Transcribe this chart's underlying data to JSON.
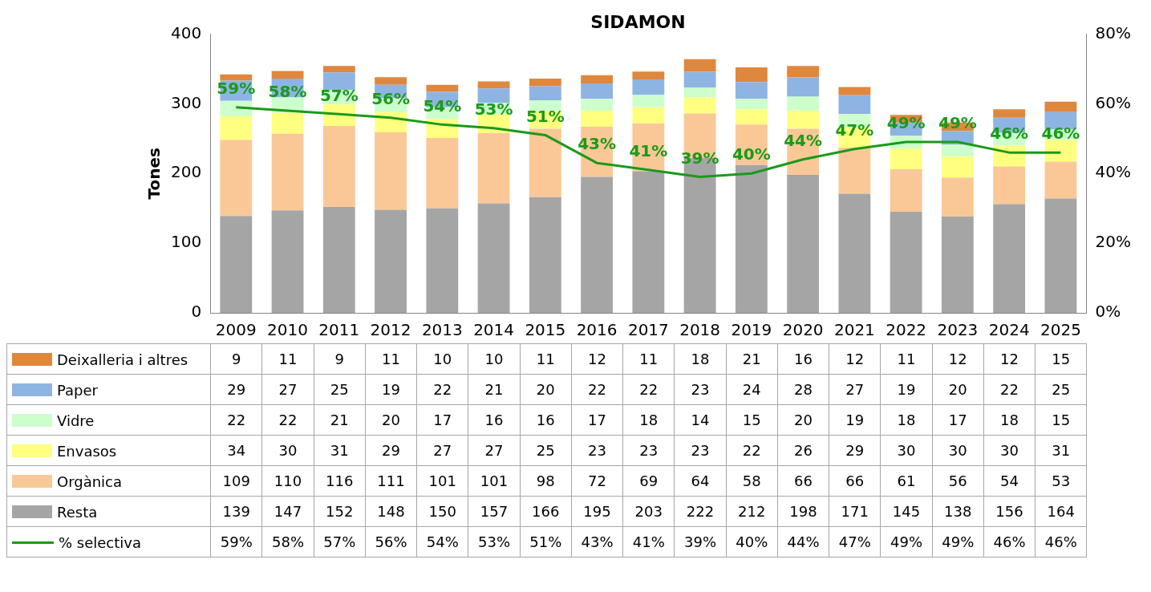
{
  "chart_data": {
    "type": "bar",
    "title": "SIDAMON",
    "ylabel": "Tones",
    "stacked": true,
    "grid": false,
    "legend": "bottom",
    "data_labels": true,
    "marker": "none",
    "categories": [
      "2009",
      "2010",
      "2011",
      "2012",
      "2013",
      "2014",
      "2015",
      "2016",
      "2017",
      "2018",
      "2019",
      "2020",
      "2021",
      "2022",
      "2023",
      "2024",
      "2025"
    ],
    "ylim": [
      0,
      400
    ],
    "yticks": [
      0,
      100,
      200,
      300,
      400
    ],
    "y2lim": [
      0,
      80
    ],
    "y2ticks": [
      {
        "value": 0,
        "label": "0%"
      },
      {
        "value": 20,
        "label": "20%"
      },
      {
        "value": 40,
        "label": "40%"
      },
      {
        "value": 60,
        "label": "60%"
      },
      {
        "value": 80,
        "label": "80%"
      }
    ],
    "series": [
      {
        "name": "Resta",
        "color": "#a5a5a5",
        "values": [
          139,
          147,
          152,
          148,
          150,
          157,
          166,
          195,
          203,
          222,
          212,
          198,
          171,
          145,
          138,
          156,
          164
        ]
      },
      {
        "name": "Orgànica",
        "color": "#fac896",
        "values": [
          109,
          110,
          116,
          111,
          101,
          101,
          98,
          72,
          69,
          64,
          58,
          66,
          66,
          61,
          56,
          54,
          53
        ]
      },
      {
        "name": "Envasos",
        "color": "#ffff80",
        "values": [
          34,
          30,
          31,
          29,
          27,
          27,
          25,
          23,
          23,
          23,
          22,
          26,
          29,
          30,
          30,
          30,
          31
        ]
      },
      {
        "name": "Vidre",
        "color": "#ccffcc",
        "values": [
          22,
          22,
          21,
          20,
          17,
          16,
          16,
          17,
          18,
          14,
          15,
          20,
          19,
          18,
          17,
          18,
          15
        ]
      },
      {
        "name": "Paper",
        "color": "#8eb4e3",
        "values": [
          29,
          27,
          25,
          19,
          22,
          21,
          20,
          22,
          22,
          23,
          24,
          28,
          27,
          19,
          20,
          22,
          25
        ]
      },
      {
        "name": "Deixalleria i altres",
        "color": "#e0873e",
        "values": [
          9,
          11,
          9,
          11,
          10,
          10,
          11,
          12,
          11,
          18,
          21,
          16,
          12,
          11,
          12,
          12,
          15
        ]
      },
      {
        "name": "% selectiva",
        "type": "line",
        "axis": "y2",
        "color": "#1a9a1a",
        "values": [
          59,
          58,
          57,
          56,
          54,
          53,
          51,
          43,
          41,
          39,
          40,
          44,
          47,
          49,
          49,
          46,
          46
        ],
        "value_labels": [
          "59%",
          "58%",
          "57%",
          "56%",
          "54%",
          "53%",
          "51%",
          "43%",
          "41%",
          "39%",
          "40%",
          "44%",
          "47%",
          "49%",
          "49%",
          "46%",
          "46%"
        ]
      }
    ]
  }
}
